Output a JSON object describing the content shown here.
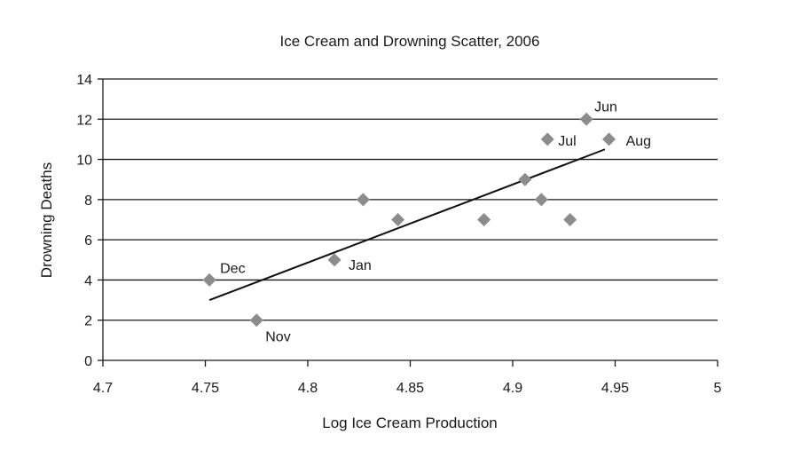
{
  "chart_data": {
    "type": "scatter",
    "title": "Ice Cream and Drowning Scatter, 2006",
    "xlabel": "Log Ice Cream Production",
    "ylabel": "Drowning Deaths",
    "xlim": [
      4.7,
      5
    ],
    "ylim": [
      0,
      14
    ],
    "x_ticks": [
      "4.7",
      "4.75",
      "4.8",
      "4.85",
      "4.9",
      "4.95",
      "5"
    ],
    "y_ticks": [
      "0",
      "2",
      "4",
      "6",
      "8",
      "10",
      "12",
      "14"
    ],
    "grid": "horizontal",
    "legend": "none",
    "marker": "diamond",
    "marker_color": "#8c8c8c",
    "points": [
      {
        "x": 4.752,
        "y": 4,
        "label": "Dec"
      },
      {
        "x": 4.775,
        "y": 2,
        "label": "Nov"
      },
      {
        "x": 4.813,
        "y": 5,
        "label": "Jan"
      },
      {
        "x": 4.827,
        "y": 8,
        "label": ""
      },
      {
        "x": 4.844,
        "y": 7,
        "label": ""
      },
      {
        "x": 4.886,
        "y": 7,
        "label": ""
      },
      {
        "x": 4.906,
        "y": 9,
        "label": ""
      },
      {
        "x": 4.914,
        "y": 8,
        "label": ""
      },
      {
        "x": 4.917,
        "y": 11,
        "label": "Jul"
      },
      {
        "x": 4.928,
        "y": 7,
        "label": ""
      },
      {
        "x": 4.936,
        "y": 12,
        "label": "Jun"
      },
      {
        "x": 4.947,
        "y": 11,
        "label": "Aug"
      }
    ],
    "trendline": {
      "type": "linear",
      "x": [
        4.752,
        4.945
      ],
      "y": [
        3.0,
        10.5
      ]
    }
  }
}
